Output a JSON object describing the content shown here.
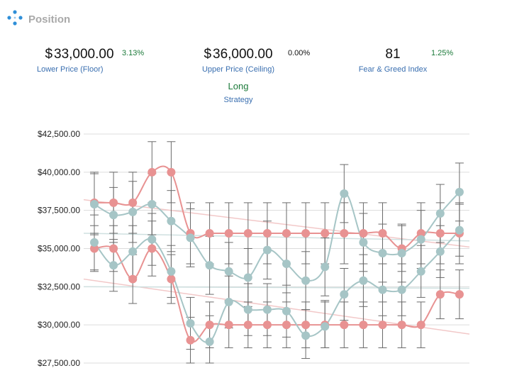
{
  "header": {
    "title": "Position",
    "icon": "network-nodes-icon"
  },
  "stats": {
    "floor": {
      "currency": "$",
      "value": "33,000.00",
      "change": "3.13%",
      "change_color": "#1c7a3a",
      "label": "Lower Price (Floor)"
    },
    "ceiling": {
      "currency": "$",
      "value": "36,000.00",
      "change": "0.00%",
      "change_color": "#111111",
      "label": "Upper Price (Ceiling)"
    },
    "fear_greed": {
      "value": "81",
      "change": "1.25%",
      "change_color": "#1c7a3a",
      "label": "Fear & Greed Index"
    }
  },
  "strategy": {
    "value": "Long",
    "label": "Strategy"
  },
  "colors": {
    "red": "#e89292",
    "teal": "#a6c5c6",
    "error_bar": "#6a6a6a",
    "grid": "#dcdcdc"
  },
  "chart_data": {
    "type": "line",
    "x_count": 20,
    "ylim": [
      27500,
      42500
    ],
    "yticks": [
      27500,
      30000,
      32500,
      35000,
      37500,
      40000,
      42500
    ],
    "ytick_labels": [
      "$27,500.00",
      "$30,000.00",
      "$32,500.00",
      "$35,000.00",
      "$37,500.00",
      "$40,000.00",
      "$42,500.00"
    ],
    "grid": true,
    "series": [
      {
        "color": "#e89292",
        "values": [
          38000,
          38000,
          38000,
          40000,
          40000,
          36000,
          36000,
          36000,
          36000,
          36000,
          36000,
          36000,
          36000,
          36000,
          36000,
          36000,
          35000,
          36000,
          36000,
          36000
        ],
        "err_low": [
          36000,
          36000,
          36000,
          38000,
          38000,
          34000,
          34000,
          34000,
          34000,
          34000,
          34000,
          34000,
          34000,
          34000,
          34000,
          34000,
          33500,
          34000,
          34000,
          34000
        ],
        "err_high": [
          40000,
          40000,
          40000,
          42000,
          42000,
          38000,
          38000,
          38000,
          38000,
          38000,
          38000,
          38000,
          38000,
          38000,
          38000,
          38000,
          36500,
          38000,
          38000,
          38000
        ]
      },
      {
        "color": "#e89292",
        "values": [
          35000,
          35000,
          33000,
          35000,
          33000,
          29000,
          30000,
          30000,
          30000,
          30000,
          30000,
          30000,
          30000,
          30000,
          30000,
          30000,
          30000,
          30000,
          32000,
          32000
        ],
        "err_low": [
          33500,
          33500,
          31400,
          33200,
          31400,
          27500,
          28500,
          28500,
          28500,
          28500,
          28500,
          28500,
          28500,
          28500,
          28500,
          28500,
          28500,
          28500,
          30400,
          30400
        ],
        "err_high": [
          36500,
          36500,
          34600,
          36800,
          34600,
          30500,
          31500,
          31500,
          31500,
          31500,
          31500,
          31500,
          31500,
          31500,
          31500,
          31500,
          31500,
          31500,
          33600,
          33600
        ]
      },
      {
        "color": "#a6c5c6",
        "values": [
          37900,
          37200,
          37400,
          37900,
          36800,
          35700,
          33900,
          33500,
          33100,
          34900,
          34000,
          32900,
          33800,
          38600,
          35400,
          34700,
          34700,
          35600,
          37300,
          38700
        ],
        "err_low": [
          35900,
          35400,
          35400,
          35900,
          34800,
          33800,
          32000,
          31600,
          31200,
          33000,
          32100,
          31000,
          31900,
          36700,
          33500,
          32800,
          32800,
          33700,
          35400,
          36800
        ],
        "err_high": [
          39900,
          39000,
          39400,
          39900,
          38800,
          37600,
          35800,
          35400,
          35000,
          36800,
          35900,
          34800,
          35700,
          40500,
          37300,
          36600,
          36600,
          37500,
          39200,
          40600
        ]
      },
      {
        "color": "#a6c5c6",
        "values": [
          35400,
          33900,
          34800,
          35600,
          33500,
          30100,
          28900,
          31500,
          31000,
          31000,
          30900,
          29300,
          29900,
          32000,
          32900,
          32300,
          32300,
          33500,
          34800,
          36200
        ],
        "err_low": [
          33600,
          32200,
          33100,
          33900,
          31800,
          28400,
          27500,
          29800,
          29300,
          29300,
          29200,
          27800,
          28500,
          30300,
          31200,
          30600,
          30600,
          31800,
          33100,
          34500
        ],
        "err_high": [
          37200,
          35600,
          36500,
          37300,
          35200,
          31800,
          30600,
          33200,
          32700,
          32700,
          32600,
          31000,
          31600,
          33700,
          34600,
          34000,
          34000,
          35200,
          36500,
          37900
        ]
      }
    ],
    "trendlines": [
      {
        "color": "#f2c8c8",
        "from": 38200,
        "to": 35100
      },
      {
        "color": "#f2c8c8",
        "from": 33000,
        "to": 29400
      },
      {
        "color": "#cfe0e0",
        "from": 36000,
        "to": 35500
      },
      {
        "color": "#cfe0e0",
        "from": 32500,
        "to": 32400
      }
    ]
  }
}
